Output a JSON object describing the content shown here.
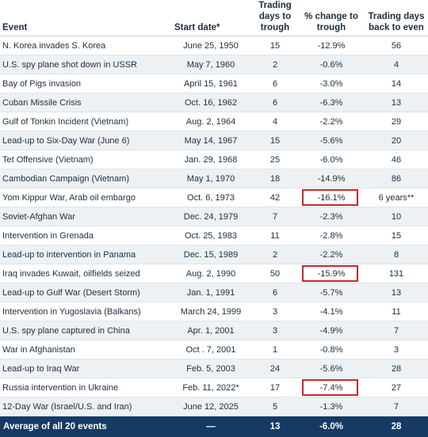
{
  "headers": {
    "event": "Event",
    "start_date": "Start date*",
    "trough_days": "Trading days to trough",
    "pct_change": "% change to trough",
    "even_days": "Trading days back to even"
  },
  "rows": [
    {
      "event": "N. Korea invades S. Korea",
      "start_date": "June 25, 1950",
      "trough_days": "15",
      "pct_change": "-12.9%",
      "even_days": "56",
      "highlight": false
    },
    {
      "event": "U.S. spy plane shot down in USSR",
      "start_date": "May 7, 1960",
      "trough_days": "2",
      "pct_change": "-0.6%",
      "even_days": "4",
      "highlight": false
    },
    {
      "event": "Bay of Pigs invasion",
      "start_date": "April 15, 1961",
      "trough_days": "6",
      "pct_change": "-3.0%",
      "even_days": "14",
      "highlight": false
    },
    {
      "event": "Cuban Missile Crisis",
      "start_date": "Oct. 16, 1962",
      "trough_days": "6",
      "pct_change": "-6.3%",
      "even_days": "13",
      "highlight": false
    },
    {
      "event": "Gulf of Tonkin Incident (Vietnam)",
      "start_date": "Aug. 2, 1964",
      "trough_days": "4",
      "pct_change": "-2.2%",
      "even_days": "29",
      "highlight": false
    },
    {
      "event": "Lead-up to Six-Day War (June 6)",
      "start_date": "May 14, 1967",
      "trough_days": "15",
      "pct_change": "-5.6%",
      "even_days": "20",
      "highlight": false
    },
    {
      "event": "Tet Offensive (Vietnam)",
      "start_date": "Jan. 29, 1968",
      "trough_days": "25",
      "pct_change": "-6.0%",
      "even_days": "46",
      "highlight": false
    },
    {
      "event": "Cambodian Campaign (Vietnam)",
      "start_date": "May 1, 1970",
      "trough_days": "18",
      "pct_change": "-14.9%",
      "even_days": "86",
      "highlight": false
    },
    {
      "event": "Yom Kippur War, Arab oil embargo",
      "start_date": "Oct. 6, 1973",
      "trough_days": "42",
      "pct_change": "-16.1%",
      "even_days": "6 years**",
      "highlight": true
    },
    {
      "event": "Soviet-Afghan War",
      "start_date": "Dec. 24, 1979",
      "trough_days": "7",
      "pct_change": "-2.3%",
      "even_days": "10",
      "highlight": false
    },
    {
      "event": "Intervention in Grenada",
      "start_date": "Oct. 25, 1983",
      "trough_days": "11",
      "pct_change": "-2.8%",
      "even_days": "15",
      "highlight": false
    },
    {
      "event": "Lead-up to intervention in Panama",
      "start_date": "Dec. 15, 1989",
      "trough_days": "2",
      "pct_change": "-2.2%",
      "even_days": "8",
      "highlight": false
    },
    {
      "event": "Iraq invades Kuwait, oilfields seized",
      "start_date": "Aug. 2, 1990",
      "trough_days": "50",
      "pct_change": "-15.9%",
      "even_days": "131",
      "highlight": true
    },
    {
      "event": "Lead-up to Gulf War (Desert Storm)",
      "start_date": "Jan. 1, 1991",
      "trough_days": "6",
      "pct_change": "-5.7%",
      "even_days": "13",
      "highlight": false
    },
    {
      "event": "Intervention in Yugoslavia (Balkans)",
      "start_date": "March 24, 1999",
      "trough_days": "3",
      "pct_change": "-4.1%",
      "even_days": "11",
      "highlight": false
    },
    {
      "event": "U.S. spy plane captured in China",
      "start_date": "Apr. 1, 2001",
      "trough_days": "3",
      "pct_change": "-4.9%",
      "even_days": "7",
      "highlight": false
    },
    {
      "event": "War in Afghanistan",
      "start_date": "Oct . 7, 2001",
      "trough_days": "1",
      "pct_change": "-0.8%",
      "even_days": "3",
      "highlight": false
    },
    {
      "event": "Lead-up to Iraq War",
      "start_date": "Feb. 5, 2003",
      "trough_days": "24",
      "pct_change": "-5.6%",
      "even_days": "28",
      "highlight": false
    },
    {
      "event": "Russia intervention in Ukraine",
      "start_date": "Feb. 11, 2022*",
      "trough_days": "17",
      "pct_change": "-7.4%",
      "even_days": "27",
      "highlight": true
    },
    {
      "event": "12-Day War (Israel/U.S. and Iran)",
      "start_date": "June 12, 2025",
      "trough_days": "5",
      "pct_change": "-1.3%",
      "even_days": "7",
      "highlight": false
    }
  ],
  "average": {
    "event": "Average of all 20 events",
    "start_date": "—",
    "trough_days": "13",
    "pct_change": "-6.0%",
    "even_days": "28"
  },
  "colors": {
    "footer_bg": "#163a63",
    "highlight_border": "#c9262c",
    "row_shade": "#eef1f4"
  }
}
